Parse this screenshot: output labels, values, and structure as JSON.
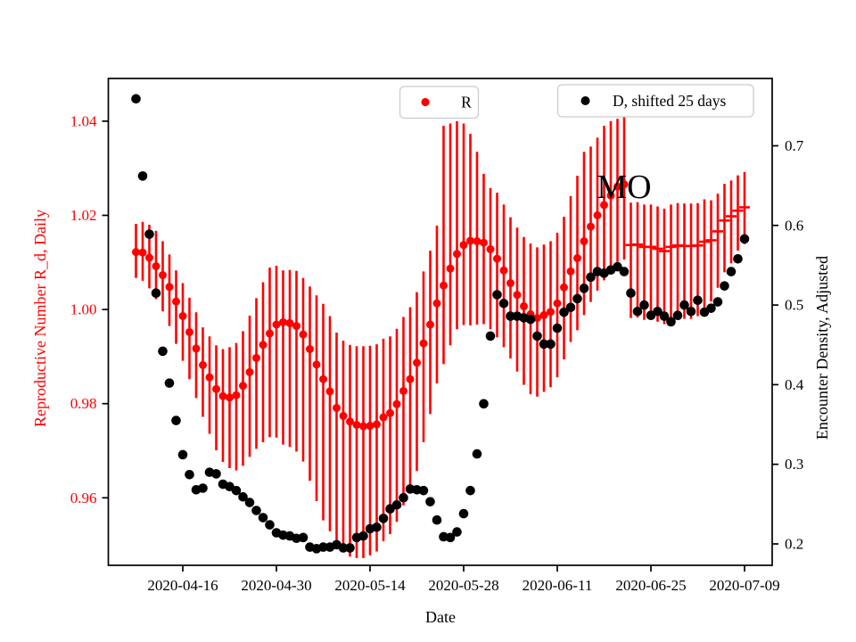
{
  "figure": {
    "background": "#ffffff"
  },
  "chart_data": {
    "type": "scatter",
    "subtype": "errorbar-scatter-dual-axis",
    "title": "",
    "annotation": {
      "text": "MO",
      "date": "2020-06-21",
      "left_axis_value": 1.026
    },
    "x_axis": {
      "label": "Date",
      "tick_labels": [
        "2020-04-16",
        "2020-04-30",
        "2020-05-14",
        "2020-05-28",
        "2020-06-11",
        "2020-06-25",
        "2020-07-09"
      ],
      "start_date": "2020-04-09",
      "end_date": "2020-07-09",
      "cadence": "daily"
    },
    "left_axis": {
      "label": "Reproductive Number R_d, Daily",
      "color": "#ff0000",
      "ticks": [
        0.96,
        0.98,
        1.0,
        1.02,
        1.04
      ],
      "tick_labels": [
        "0.96",
        "0.98",
        "1.00",
        "1.02",
        "1.04"
      ]
    },
    "right_axis": {
      "label": "Encounter Density, Adjusted",
      "color": "#000000",
      "ticks": [
        0.2,
        0.3,
        0.4,
        0.5,
        0.6,
        0.7
      ],
      "tick_labels": [
        "0.2",
        "0.3",
        "0.4",
        "0.5",
        "0.6",
        "0.7"
      ]
    },
    "legends": [
      {
        "label": "R",
        "marker_color": "#ff0000"
      },
      {
        "label": "D, shifted 25 days",
        "marker_color": "#000000"
      }
    ],
    "series": [
      {
        "name": "R",
        "axis": "left",
        "color": "#ff0000",
        "marker": "circle",
        "marker_after_dash_start": "hline-dash",
        "dash_start_date": "2020-06-22",
        "dash_start_index": 74,
        "values": [
          1.0122,
          1.0121,
          1.011,
          1.0092,
          1.0073,
          1.0048,
          1.0017,
          0.9986,
          0.9952,
          0.9917,
          0.9882,
          0.9856,
          0.9831,
          0.9816,
          0.9813,
          0.9818,
          0.9838,
          0.9867,
          0.9897,
          0.9925,
          0.9949,
          0.9968,
          0.9973,
          0.9971,
          0.9965,
          0.9947,
          0.9916,
          0.9883,
          0.9852,
          0.9826,
          0.9791,
          0.9774,
          0.9762,
          0.9755,
          0.9752,
          0.9753,
          0.9756,
          0.9771,
          0.978,
          0.9799,
          0.9827,
          0.9852,
          0.9887,
          0.9928,
          0.9968,
          1.0013,
          1.0051,
          1.0087,
          1.0118,
          1.0137,
          1.0146,
          1.0145,
          1.0142,
          1.0128,
          1.0108,
          1.0083,
          1.0056,
          1.0031,
          1.0007,
          0.999,
          0.9982,
          0.9988,
          0.9995,
          1.0013,
          1.0047,
          1.0081,
          1.0109,
          1.0145,
          1.0176,
          1.02,
          1.0222,
          1.0242,
          1.0261,
          1.0266,
          1.0137,
          1.0138,
          1.0133,
          1.0133,
          1.0129,
          1.0124,
          1.0133,
          1.0136,
          1.0135,
          1.0135,
          1.0136,
          1.0144,
          1.0147,
          1.0166,
          1.0189,
          1.0198,
          1.021,
          1.0217
        ],
        "err_down": [
          0.0055,
          0.006,
          0.0065,
          0.007,
          0.0077,
          0.0083,
          0.009,
          0.0095,
          0.01,
          0.0105,
          0.011,
          0.012,
          0.013,
          0.014,
          0.015,
          0.016,
          0.017,
          0.018,
          0.0193,
          0.0207,
          0.022,
          0.024,
          0.026,
          0.0263,
          0.0267,
          0.027,
          0.028,
          0.029,
          0.03,
          0.0297,
          0.0293,
          0.029,
          0.0287,
          0.0283,
          0.028,
          0.0275,
          0.027,
          0.0263,
          0.0257,
          0.025,
          0.0243,
          0.0237,
          0.023,
          0.021,
          0.019,
          0.017,
          0.0167,
          0.0163,
          0.016,
          0.017,
          0.018,
          0.0177,
          0.0173,
          0.017,
          0.0167,
          0.0163,
          0.016,
          0.0163,
          0.0167,
          0.017,
          0.0167,
          0.0163,
          0.016,
          0.0157,
          0.0153,
          0.015,
          0.0153,
          0.0157,
          0.016,
          0.016,
          0.016,
          0.016,
          0.016,
          0.016,
          0.0155,
          0.0155,
          0.0155,
          0.0155,
          0.0155,
          0.0155,
          0.0155,
          0.0155,
          0.0155,
          0.0155,
          0.015,
          0.014,
          0.013,
          0.012,
          0.011,
          0.01,
          0.0085,
          0.0078
        ],
        "err_up": [
          0.006,
          0.0065,
          0.007,
          0.0075,
          0.0072,
          0.0069,
          0.0066,
          0.007,
          0.0073,
          0.0077,
          0.008,
          0.0087,
          0.0093,
          0.01,
          0.0107,
          0.0111,
          0.0116,
          0.012,
          0.0127,
          0.0133,
          0.014,
          0.0125,
          0.011,
          0.0113,
          0.0117,
          0.012,
          0.0133,
          0.0147,
          0.016,
          0.016,
          0.016,
          0.016,
          0.0163,
          0.0167,
          0.017,
          0.017,
          0.017,
          0.0167,
          0.0163,
          0.016,
          0.0157,
          0.0153,
          0.015,
          0.0153,
          0.0157,
          0.0165,
          0.0339,
          0.0308,
          0.0282,
          0.0258,
          0.0227,
          0.019,
          0.0146,
          0.013,
          0.014,
          0.014,
          0.014,
          0.0143,
          0.0147,
          0.015,
          0.015,
          0.015,
          0.015,
          0.015,
          0.015,
          0.016,
          0.0175,
          0.019,
          0.017,
          0.0165,
          0.0168,
          0.0158,
          0.0144,
          0.0144,
          0.009,
          0.009,
          0.009,
          0.009,
          0.009,
          0.009,
          0.009,
          0.009,
          0.009,
          0.009,
          0.009,
          0.009,
          0.0085,
          0.008,
          0.0078,
          0.0076,
          0.0075,
          0.0075
        ]
      },
      {
        "name": "D, shifted 25 days",
        "axis": "right",
        "color": "#000000",
        "marker": "circle",
        "values": [
          0.759,
          0.662,
          0.589,
          0.515,
          0.442,
          0.402,
          0.355,
          0.312,
          0.287,
          0.268,
          0.27,
          0.29,
          0.288,
          0.275,
          0.272,
          0.267,
          0.259,
          0.252,
          0.242,
          0.233,
          0.224,
          0.214,
          0.211,
          0.21,
          0.207,
          0.208,
          0.196,
          0.194,
          0.196,
          0.196,
          0.199,
          0.195,
          0.195,
          0.208,
          0.21,
          0.219,
          0.221,
          0.232,
          0.244,
          0.249,
          0.258,
          0.269,
          0.268,
          0.267,
          0.253,
          0.23,
          0.209,
          0.208,
          0.215,
          0.238,
          0.267,
          0.313,
          0.376,
          0.461,
          0.513,
          0.502,
          0.486,
          0.486,
          0.484,
          0.482,
          0.461,
          0.451,
          0.451,
          0.471,
          0.491,
          0.497,
          0.508,
          0.521,
          0.535,
          0.542,
          0.54,
          0.544,
          0.548,
          0.542,
          0.515,
          0.492,
          0.5,
          0.487,
          0.492,
          0.486,
          0.479,
          0.487,
          0.5,
          0.492,
          0.506,
          0.491,
          0.496,
          0.504,
          0.524,
          0.542,
          0.558,
          0.583
        ]
      }
    ]
  }
}
